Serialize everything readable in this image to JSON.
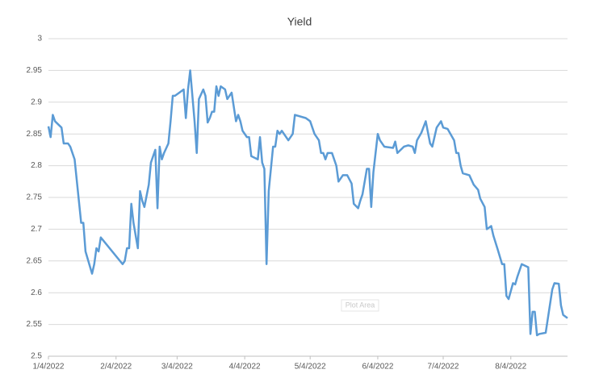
{
  "chart_data": {
    "type": "line",
    "title": "Yield",
    "x": [
      "1/4/2022",
      "1/5/2022",
      "1/6/2022",
      "1/7/2022",
      "1/10/2022",
      "1/11/2022",
      "1/13/2022",
      "1/14/2022",
      "1/16/2022",
      "1/19/2022",
      "1/20/2022",
      "1/21/2022",
      "1/24/2022",
      "1/25/2022",
      "1/26/2022",
      "1/27/2022",
      "1/28/2022",
      "2/7/2022",
      "2/8/2022",
      "2/9/2022",
      "2/10/2022",
      "2/11/2022",
      "2/12/2022",
      "2/14/2022",
      "2/15/2022",
      "2/16/2022",
      "2/17/2022",
      "2/19/2022",
      "2/20/2022",
      "2/22/2022",
      "2/23/2022",
      "2/24/2022",
      "2/25/2022",
      "2/26/2022",
      "2/28/2022",
      "3/1/2022",
      "3/2/2022",
      "3/3/2022",
      "3/5/2022",
      "3/7/2022",
      "3/8/2022",
      "3/9/2022",
      "3/10/2022",
      "3/12/2022",
      "3/13/2022",
      "3/14/2022",
      "3/16/2022",
      "3/17/2022",
      "3/18/2022",
      "3/19/2022",
      "3/20/2022",
      "3/21/2022",
      "3/22/2022",
      "3/23/2022",
      "3/24/2022",
      "3/26/2022",
      "3/27/2022",
      "3/29/2022",
      "3/31/2022",
      "4/1/2022",
      "4/2/2022",
      "4/3/2022",
      "4/5/2022",
      "4/6/2022",
      "4/7/2022",
      "4/10/2022",
      "4/11/2022",
      "4/12/2022",
      "4/13/2022",
      "4/14/2022",
      "4/15/2022",
      "4/17/2022",
      "4/18/2022",
      "4/19/2022",
      "4/20/2022",
      "4/21/2022",
      "4/22/2022",
      "4/24/2022",
      "4/26/2022",
      "4/27/2022",
      "5/2/2022",
      "5/4/2022",
      "5/6/2022",
      "5/8/2022",
      "5/9/2022",
      "5/10/2022",
      "5/11/2022",
      "5/12/2022",
      "5/14/2022",
      "5/16/2022",
      "5/17/2022",
      "5/19/2022",
      "5/21/2022",
      "5/23/2022",
      "5/24/2022",
      "5/26/2022",
      "5/27/2022",
      "5/28/2022",
      "5/30/2022",
      "5/31/2022",
      "6/1/2022",
      "6/2/2022",
      "6/4/2022",
      "6/5/2022",
      "6/7/2022",
      "6/11/2022",
      "6/12/2022",
      "6/13/2022",
      "6/16/2022",
      "6/18/2022",
      "6/20/2022",
      "6/21/2022",
      "6/22/2022",
      "6/24/2022",
      "6/26/2022",
      "6/28/2022",
      "6/29/2022",
      "7/1/2022",
      "7/3/2022",
      "7/4/2022",
      "7/6/2022",
      "7/9/2022",
      "7/10/2022",
      "7/11/2022",
      "7/12/2022",
      "7/13/2022",
      "7/16/2022",
      "7/18/2022",
      "7/20/2022",
      "7/21/2022",
      "7/23/2022",
      "7/24/2022",
      "7/26/2022",
      "7/27/2022",
      "7/29/2022",
      "7/31/2022",
      "8/1/2022",
      "8/2/2022",
      "8/3/2022",
      "8/5/2022",
      "8/6/2022",
      "8/7/2022",
      "8/9/2022",
      "8/12/2022",
      "8/13/2022",
      "8/14/2022",
      "8/15/2022",
      "8/16/2022",
      "8/17/2022",
      "8/20/2022",
      "8/23/2022",
      "8/24/2022",
      "8/26/2022",
      "8/27/2022",
      "8/28/2022",
      "8/30/2022"
    ],
    "series": [
      {
        "name": "Yield",
        "color": "#5b9bd5",
        "values": [
          2.862,
          2.845,
          2.88,
          2.87,
          2.86,
          2.835,
          2.835,
          2.83,
          2.81,
          2.71,
          2.71,
          2.665,
          2.63,
          2.645,
          2.67,
          2.665,
          2.687,
          2.645,
          2.65,
          2.67,
          2.67,
          2.74,
          2.71,
          2.67,
          2.76,
          2.745,
          2.735,
          2.77,
          2.805,
          2.825,
          2.733,
          2.83,
          2.81,
          2.82,
          2.835,
          2.87,
          2.91,
          2.91,
          2.915,
          2.92,
          2.875,
          2.92,
          2.95,
          2.87,
          2.82,
          2.905,
          2.92,
          2.91,
          2.868,
          2.875,
          2.885,
          2.885,
          2.925,
          2.91,
          2.925,
          2.92,
          2.905,
          2.915,
          2.87,
          2.88,
          2.87,
          2.855,
          2.845,
          2.845,
          2.815,
          2.81,
          2.845,
          2.805,
          2.795,
          2.645,
          2.76,
          2.83,
          2.83,
          2.855,
          2.85,
          2.855,
          2.85,
          2.84,
          2.85,
          2.88,
          2.875,
          2.87,
          2.85,
          2.84,
          2.82,
          2.82,
          2.81,
          2.82,
          2.82,
          2.8,
          2.775,
          2.785,
          2.785,
          2.772,
          2.74,
          2.733,
          2.745,
          2.755,
          2.795,
          2.795,
          2.735,
          2.79,
          2.85,
          2.84,
          2.83,
          2.828,
          2.838,
          2.82,
          2.83,
          2.832,
          2.83,
          2.82,
          2.84,
          2.852,
          2.87,
          2.835,
          2.83,
          2.86,
          2.87,
          2.86,
          2.858,
          2.84,
          2.82,
          2.82,
          2.8,
          2.788,
          2.785,
          2.77,
          2.762,
          2.748,
          2.735,
          2.7,
          2.705,
          2.69,
          2.668,
          2.645,
          2.645,
          2.595,
          2.59,
          2.615,
          2.613,
          2.625,
          2.645,
          2.64,
          2.535,
          2.57,
          2.57,
          2.533,
          2.535,
          2.537,
          2.605,
          2.615,
          2.614,
          2.58,
          2.565,
          2.56
        ]
      }
    ],
    "xlim": [
      "1/4/2022",
      "8/30/2022"
    ],
    "xticks": [
      "1/4/2022",
      "2/4/2022",
      "3/4/2022",
      "4/4/2022",
      "5/4/2022",
      "6/4/2022",
      "7/4/2022",
      "8/4/2022"
    ],
    "ylim": [
      2.5,
      3
    ],
    "yticks": [
      2.5,
      2.55,
      2.6,
      2.65,
      2.7,
      2.75,
      2.8,
      2.85,
      2.9,
      2.95,
      3
    ],
    "grid": true,
    "annotations": [
      "Plot Area"
    ]
  }
}
